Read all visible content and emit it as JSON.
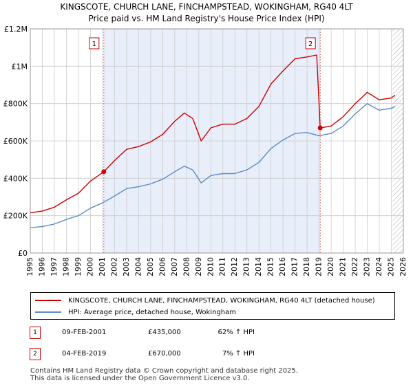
{
  "title_line1": "KINGSCOTE, CHURCH LANE, FINCHAMPSTEAD, WOKINGHAM, RG40 4LT",
  "title_line2": "Price paid vs. HM Land Registry's House Price Index (HPI)",
  "colors": {
    "property": "#cc0000",
    "hpi": "#5b8ac6",
    "shade": "#e8eefa",
    "grid": "#cccccc",
    "marker_box": "#cc0000"
  },
  "chart_data": {
    "type": "line",
    "title": "Price paid vs. HM Land Registry's House Price Index (HPI)",
    "xlim": [
      1995,
      2026
    ],
    "ylim": [
      0,
      1200000
    ],
    "y_ticks": [
      0,
      200000,
      400000,
      600000,
      800000,
      1000000,
      1200000
    ],
    "y_tick_labels": [
      "£0",
      "£200K",
      "£400K",
      "£600K",
      "£800K",
      "£1M",
      "£1.2M"
    ],
    "x_ticks": [
      "1995",
      "1996",
      "1997",
      "1998",
      "1999",
      "2000",
      "2001",
      "2002",
      "2003",
      "2004",
      "2005",
      "2006",
      "2007",
      "2008",
      "2009",
      "2010",
      "2011",
      "2012",
      "2013",
      "2014",
      "2015",
      "2016",
      "2017",
      "2018",
      "2019",
      "2020",
      "2021",
      "2022",
      "2023",
      "2024",
      "2025",
      "2026"
    ],
    "shaded_period": [
      2001.11,
      2019.09
    ],
    "hatched_after": 2025.1,
    "series": [
      {
        "name": "KINGSCOTE, CHURCH LANE, FINCHAMPSTEAD, WOKINGHAM, RG40 4LT (detached house)",
        "x": [
          1995,
          1996,
          1997,
          1998,
          1999,
          2000,
          2001.11,
          2002,
          2003,
          2004,
          2005,
          2006,
          2007,
          2007.8,
          2008.5,
          2009.2,
          2010,
          2011,
          2012,
          2013,
          2014,
          2015,
          2016,
          2017,
          2018,
          2018.8,
          2019.09,
          2020,
          2021,
          2022,
          2023,
          2024,
          2025,
          2025.3
        ],
        "y": [
          215000,
          225000,
          245000,
          285000,
          320000,
          385000,
          435000,
          495000,
          555000,
          570000,
          595000,
          635000,
          705000,
          750000,
          720000,
          600000,
          670000,
          690000,
          690000,
          720000,
          785000,
          905000,
          975000,
          1040000,
          1050000,
          1060000,
          670000,
          680000,
          730000,
          800000,
          860000,
          820000,
          830000,
          845000
        ]
      },
      {
        "name": "HPI: Average price, detached house, Wokingham",
        "x": [
          1995,
          1996,
          1997,
          1998,
          1999,
          2000,
          2001,
          2002,
          2003,
          2004,
          2005,
          2006,
          2007,
          2007.8,
          2008.5,
          2009.2,
          2010,
          2011,
          2012,
          2013,
          2014,
          2015,
          2016,
          2017,
          2018,
          2019,
          2020,
          2021,
          2022,
          2023,
          2024,
          2025,
          2025.3
        ],
        "y": [
          135000,
          142000,
          155000,
          180000,
          200000,
          240000,
          268000,
          305000,
          345000,
          355000,
          370000,
          395000,
          435000,
          465000,
          445000,
          375000,
          415000,
          425000,
          425000,
          445000,
          485000,
          560000,
          605000,
          640000,
          645000,
          628000,
          640000,
          680000,
          745000,
          800000,
          765000,
          775000,
          785000
        ]
      }
    ],
    "annotations": [
      {
        "label": "1",
        "x": 2001.11,
        "y": 435000
      },
      {
        "label": "2",
        "x": 2019.09,
        "y": 670000
      }
    ]
  },
  "legend": {
    "property_label": "KINGSCOTE, CHURCH LANE, FINCHAMPSTEAD, WOKINGHAM, RG40 4LT (detached house)",
    "hpi_label": "HPI: Average price, detached house, Wokingham"
  },
  "sales": [
    {
      "num": "1",
      "date": "09-FEB-2001",
      "price": "£435,000",
      "hpi": "62% ↑ HPI"
    },
    {
      "num": "2",
      "date": "04-FEB-2019",
      "price": "£670,000",
      "hpi": "7% ↑ HPI"
    }
  ],
  "footer_line1": "Contains HM Land Registry data © Crown copyright and database right 2025.",
  "footer_line2": "This data is licensed under the Open Government Licence v3.0."
}
